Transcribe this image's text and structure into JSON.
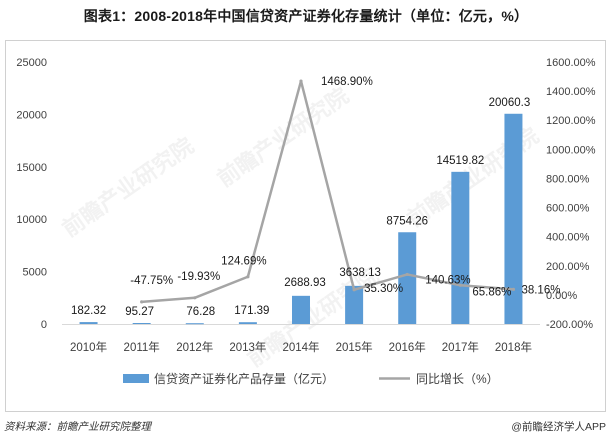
{
  "title": "图表1：2008-2018年中国信贷资产证券化存量统计（单位：亿元，%）",
  "chart_data": {
    "type": "bar+line",
    "categories": [
      "2010年",
      "2011年",
      "2012年",
      "2013年",
      "2014年",
      "2015年",
      "2016年",
      "2017年",
      "2018年"
    ],
    "series": [
      {
        "name": "信贷资产证券化产品存量（亿元）",
        "type": "bar",
        "axis": "left",
        "values": [
          182.32,
          95.27,
          76.28,
          171.39,
          2688.93,
          3638.13,
          8754.26,
          14519.82,
          20060.3
        ],
        "labels": [
          "182.32",
          "95.27",
          "76.28",
          "171.39",
          "2688.93",
          "3638.13",
          "8754.26",
          "14519.82",
          "20060.3"
        ],
        "color": "#5b9bd5"
      },
      {
        "name": "同比增长（%）",
        "type": "line",
        "axis": "right",
        "values": [
          null,
          -47.75,
          -19.93,
          124.69,
          1468.9,
          35.3,
          140.63,
          65.86,
          38.16
        ],
        "labels": [
          "",
          "-47.75%",
          "-19.93%",
          "124.69%",
          "1468.90%",
          "35.30%",
          "140.63%",
          "65.86%",
          "38.16%"
        ],
        "color": "#a5a5a5"
      }
    ],
    "left_axis": {
      "min": 0,
      "max": 25000,
      "step": 5000,
      "ticks": [
        "0",
        "5000",
        "10000",
        "15000",
        "20000",
        "25000"
      ]
    },
    "right_axis": {
      "min": -200,
      "max": 1600,
      "step": 200,
      "ticks": [
        "-200.00%",
        "0.00%",
        "200.00%",
        "400.00%",
        "600.00%",
        "800.00%",
        "1000.00%",
        "1200.00%",
        "1400.00%",
        "1600.00%"
      ]
    },
    "legend": {
      "position": "bottom",
      "bar_label": "信贷资产证券化产品存量（亿元）",
      "line_label": "同比增长（%）"
    }
  },
  "watermark": "前瞻产业研究院",
  "footer": {
    "source": "资料来源：前瞻产业研究院整理",
    "brand": "@前瞻经济学人APP"
  }
}
